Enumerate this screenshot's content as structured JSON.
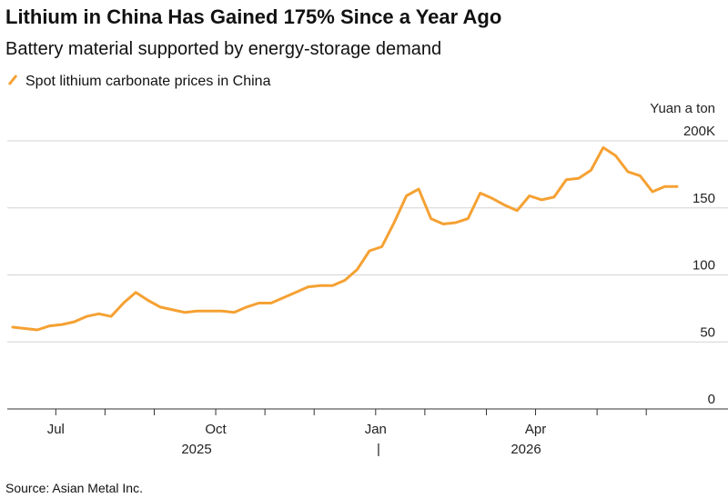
{
  "chart_data": {
    "type": "line",
    "title": "Lithium in China Has Gained 175% Since a Year Ago",
    "subtitle": "Battery material supported by energy-storage demand",
    "ylabel": "Yuan a ton",
    "source": "Source: Asian Metal Inc.",
    "x": [
      "2025-06",
      "2025-06",
      "2025-06",
      "2025-06",
      "2025-07",
      "2025-07",
      "2025-07",
      "2025-07",
      "2025-08",
      "2025-08",
      "2025-08",
      "2025-08",
      "2025-09",
      "2025-09",
      "2025-09",
      "2025-09",
      "2025-09",
      "2025-10",
      "2025-10",
      "2025-10",
      "2025-10",
      "2025-11",
      "2025-11",
      "2025-11",
      "2025-11",
      "2025-12",
      "2025-12",
      "2025-12",
      "2025-12",
      "2025-12",
      "2026-01",
      "2026-01",
      "2026-01",
      "2026-01",
      "2026-02",
      "2026-02",
      "2026-02",
      "2026-02",
      "2026-02",
      "2026-03",
      "2026-03",
      "2026-03",
      "2026-03",
      "2026-04",
      "2026-04",
      "2026-04",
      "2026-04",
      "2026-04",
      "2026-05",
      "2026-05",
      "2026-05",
      "2026-05",
      "2026-06",
      "2026-06",
      "2026-06"
    ],
    "series": [
      {
        "name": "Spot lithium carbonate prices in China",
        "color": "#f5a133",
        "values": [
          61,
          60,
          59,
          62,
          63,
          65,
          69,
          71,
          69,
          79,
          87,
          81,
          76,
          74,
          72,
          73,
          73,
          73,
          72,
          76,
          79,
          79,
          83,
          87,
          91,
          92,
          92,
          96,
          104,
          118,
          121,
          139,
          159,
          164,
          142,
          138,
          139,
          142,
          161,
          157,
          152,
          148,
          159,
          156,
          158,
          171,
          172,
          178,
          195,
          189,
          177,
          174,
          162,
          166,
          166
        ]
      }
    ],
    "xticks": [
      {
        "value": "2025-07",
        "label": "Jul"
      },
      {
        "value": "2025-10",
        "label": "Oct"
      },
      {
        "value": "2026-01",
        "label": "Jan"
      },
      {
        "value": "2026-04",
        "label": "Apr"
      }
    ],
    "xticks_minor": [
      "2025-08",
      "2025-09",
      "2025-11",
      "2025-12",
      "2026-02",
      "2026-03",
      "2026-05",
      "2026-06"
    ],
    "years": [
      "2025",
      "2026"
    ],
    "ylim": [
      0,
      200
    ],
    "yticks": [
      0,
      50,
      100,
      150,
      {
        "value": 200,
        "label": "200K"
      }
    ],
    "grid": true
  }
}
